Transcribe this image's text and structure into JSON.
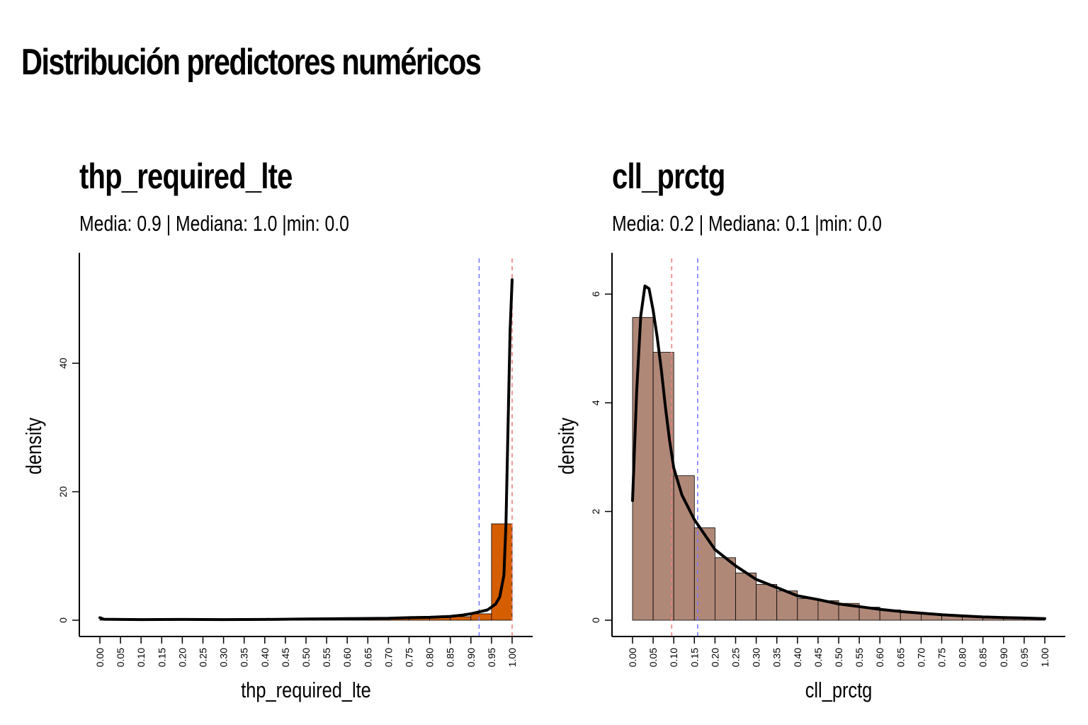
{
  "figure": {
    "title": "Distribución predictores numéricos"
  },
  "chart_data": [
    {
      "type": "bar",
      "title": "thp_required_lte",
      "subtitle": "Media: 0.9 | Mediana: 1.0 |min: 0.0",
      "xlabel": "thp_required_lte",
      "ylabel": "density",
      "xlim": [
        -0.05,
        1.05
      ],
      "ylim": [
        0,
        55
      ],
      "x_ticks": [
        "0.00",
        "0.05",
        "0.10",
        "0.15",
        "0.20",
        "0.25",
        "0.30",
        "0.35",
        "0.40",
        "0.45",
        "0.50",
        "0.55",
        "0.60",
        "0.65",
        "0.70",
        "0.75",
        "0.80",
        "0.85",
        "0.90",
        "0.95",
        "1.00"
      ],
      "y_ticks": [
        0,
        20,
        40
      ],
      "bar_color": "#D55E00",
      "bins": {
        "edges": [
          0.0,
          0.05,
          0.1,
          0.15,
          0.2,
          0.25,
          0.3,
          0.35,
          0.4,
          0.45,
          0.5,
          0.55,
          0.6,
          0.65,
          0.7,
          0.75,
          0.8,
          0.85,
          0.9,
          0.95,
          1.0
        ],
        "values": [
          0.05,
          0.05,
          0.05,
          0.05,
          0.05,
          0.05,
          0.05,
          0.05,
          0.06,
          0.07,
          0.08,
          0.1,
          0.15,
          0.2,
          0.25,
          0.3,
          0.4,
          0.55,
          1.0,
          15.0
        ]
      },
      "density_curve": {
        "x": [
          0.0,
          0.01,
          0.05,
          0.1,
          0.2,
          0.3,
          0.4,
          0.5,
          0.6,
          0.7,
          0.75,
          0.8,
          0.85,
          0.88,
          0.9,
          0.92,
          0.94,
          0.96,
          0.97,
          0.98,
          0.985,
          0.99,
          0.995,
          1.0
        ],
        "y": [
          0.4,
          0.15,
          0.12,
          0.1,
          0.12,
          0.1,
          0.12,
          0.2,
          0.25,
          0.3,
          0.4,
          0.45,
          0.6,
          0.8,
          1.0,
          1.3,
          1.6,
          2.5,
          3.6,
          7.0,
          15.0,
          30.0,
          45.0,
          53.0
        ]
      },
      "vlines": [
        {
          "name": "media",
          "x": 0.92,
          "color": "#7777FF"
        },
        {
          "name": "mediana",
          "x": 1.0,
          "color": "#F08080"
        }
      ]
    },
    {
      "type": "bar",
      "title": "cll_prctg",
      "subtitle": "Media: 0.2 | Mediana: 0.1 |min: 0.0",
      "xlabel": "cll_prctg",
      "ylabel": "density",
      "xlim": [
        -0.05,
        1.05
      ],
      "ylim": [
        0,
        6.5
      ],
      "x_ticks": [
        "0.00",
        "0.05",
        "0.10",
        "0.15",
        "0.20",
        "0.25",
        "0.30",
        "0.35",
        "0.40",
        "0.45",
        "0.50",
        "0.55",
        "0.60",
        "0.65",
        "0.70",
        "0.75",
        "0.80",
        "0.85",
        "0.90",
        "0.95",
        "1.00"
      ],
      "y_ticks": [
        0,
        2,
        4,
        6
      ],
      "bar_color": "#B08878",
      "bins": {
        "edges": [
          0.0,
          0.05,
          0.1,
          0.15,
          0.2,
          0.25,
          0.3,
          0.35,
          0.4,
          0.45,
          0.5,
          0.55,
          0.6,
          0.65,
          0.7,
          0.75,
          0.8,
          0.85,
          0.9,
          0.95,
          1.0
        ],
        "values": [
          5.57,
          4.93,
          2.66,
          1.7,
          1.15,
          0.87,
          0.66,
          0.54,
          0.4,
          0.36,
          0.31,
          0.24,
          0.19,
          0.14,
          0.12,
          0.09,
          0.07,
          0.06,
          0.05,
          0.03
        ]
      },
      "density_curve": {
        "x": [
          0.0,
          0.01,
          0.02,
          0.03,
          0.04,
          0.05,
          0.06,
          0.07,
          0.08,
          0.09,
          0.1,
          0.12,
          0.15,
          0.2,
          0.25,
          0.3,
          0.35,
          0.4,
          0.45,
          0.5,
          0.55,
          0.6,
          0.65,
          0.7,
          0.75,
          0.8,
          0.85,
          0.9,
          0.95,
          1.0
        ],
        "y": [
          2.2,
          4.2,
          5.6,
          6.15,
          6.1,
          5.7,
          5.2,
          4.6,
          3.9,
          3.3,
          2.8,
          2.3,
          1.85,
          1.3,
          1.0,
          0.75,
          0.6,
          0.45,
          0.38,
          0.3,
          0.25,
          0.2,
          0.16,
          0.13,
          0.1,
          0.08,
          0.06,
          0.05,
          0.04,
          0.03
        ]
      },
      "vlines": [
        {
          "name": "mediana",
          "x": 0.095,
          "color": "#F08080"
        },
        {
          "name": "media",
          "x": 0.158,
          "color": "#7777FF"
        }
      ]
    }
  ]
}
